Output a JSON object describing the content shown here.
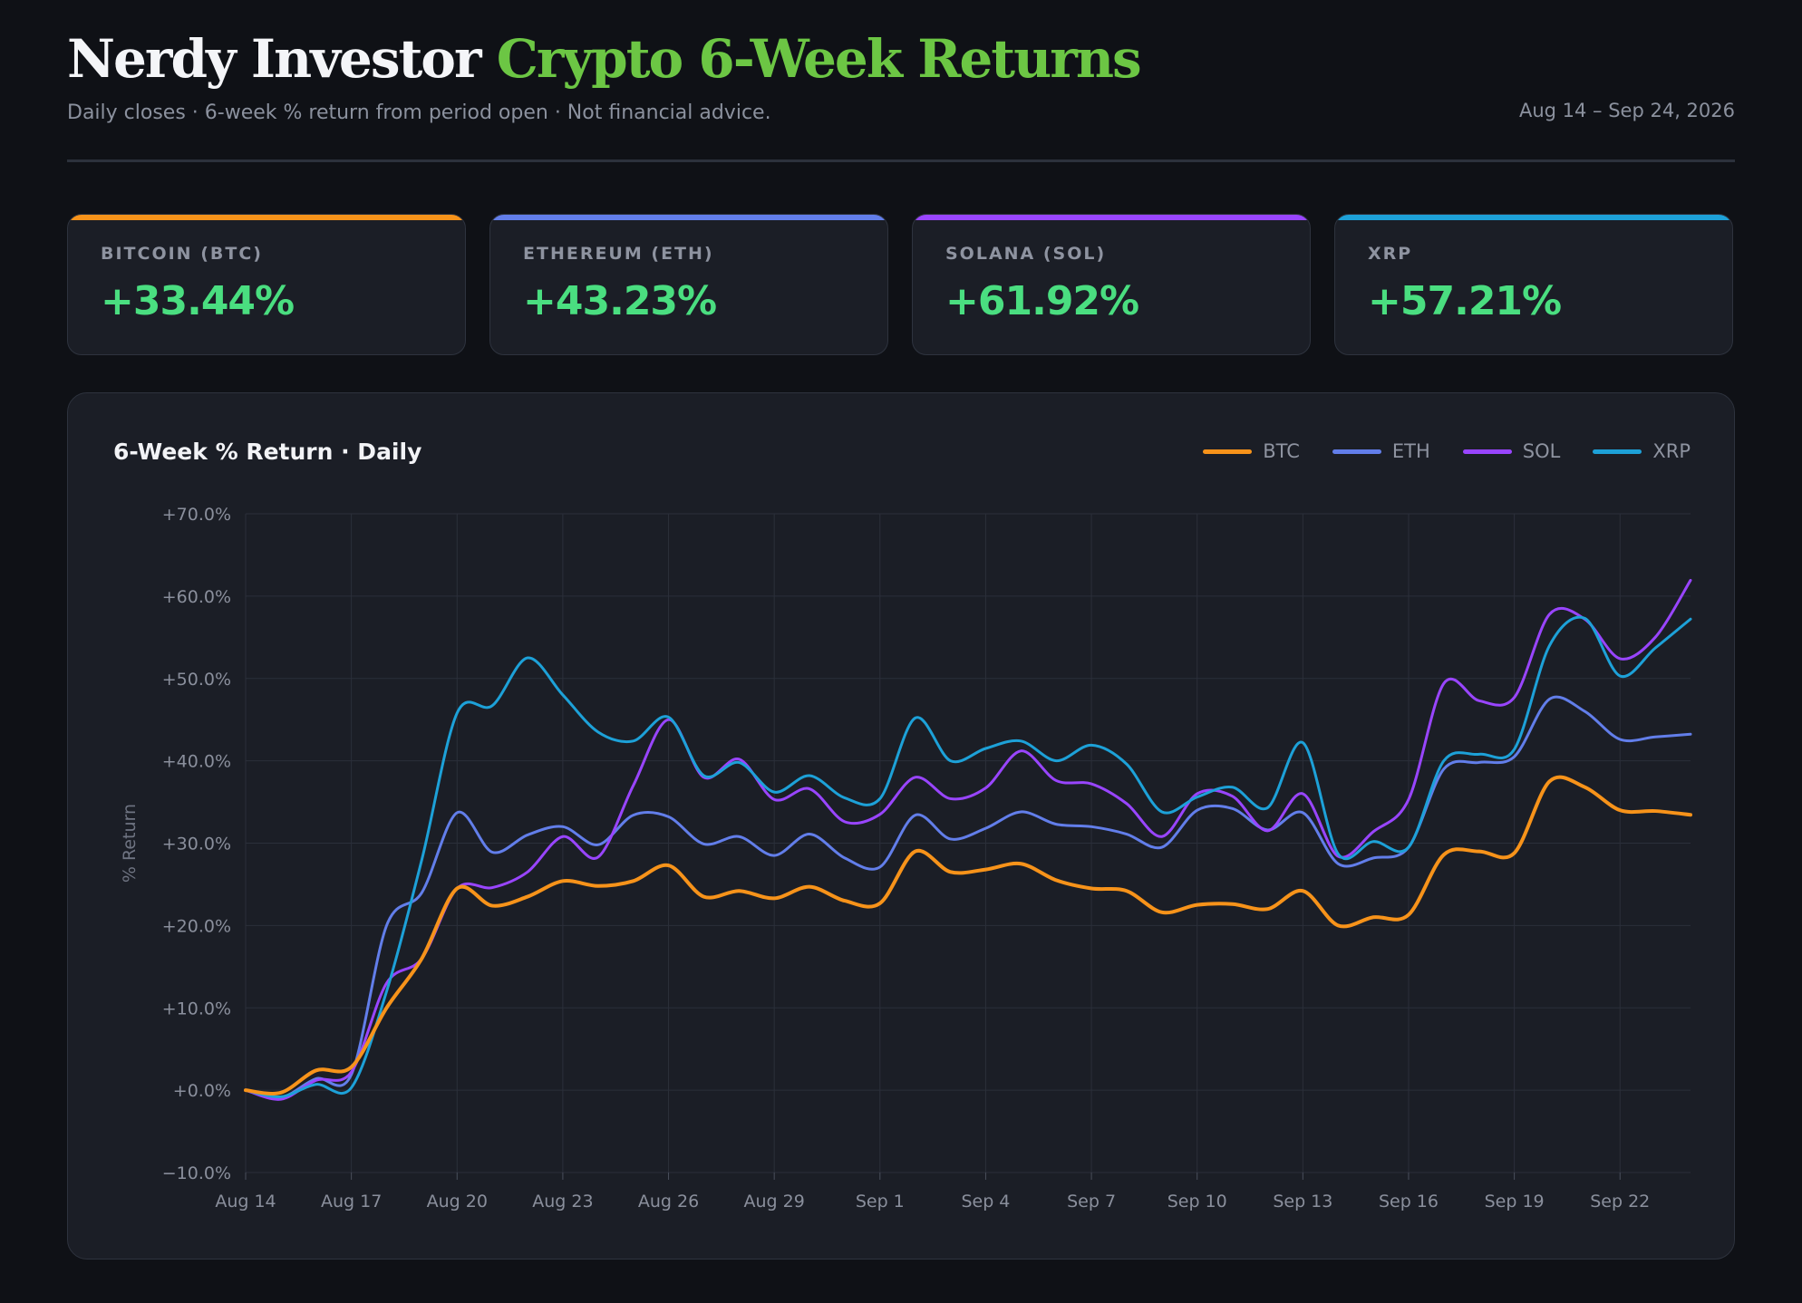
{
  "header": {
    "title_part1": "Nerdy Investor",
    "title_part2": "Crypto 6-Week Returns",
    "subtitle": "Daily closes · 6-week % return from period open · Not financial advice.",
    "date_range": "Aug 14 – Sep 24, 2026"
  },
  "cards": [
    {
      "name": "BITCOIN (BTC)",
      "value": "+33.44%",
      "color": "#f7931a"
    },
    {
      "name": "ETHEREUM (ETH)",
      "value": "+43.23%",
      "color": "#627eea"
    },
    {
      "name": "SOLANA (SOL)",
      "value": "+61.92%",
      "color": "#9945ff"
    },
    {
      "name": "XRP",
      "value": "+57.21%",
      "color": "#1da1d8"
    }
  ],
  "panel": {
    "title": "6-Week % Return · Daily"
  },
  "chart_data": {
    "type": "line",
    "ylabel": "% Return",
    "ylim": [
      -10,
      70
    ],
    "yticks": [
      -10,
      0,
      10,
      20,
      30,
      40,
      50,
      60,
      70
    ],
    "ytick_labels": [
      "−10.0%",
      "+0.0%",
      "+10.0%",
      "+20.0%",
      "+30.0%",
      "+40.0%",
      "+50.0%",
      "+60.0%",
      "+70.0%"
    ],
    "x": [
      "Aug 14",
      "Aug 15",
      "Aug 16",
      "Aug 17",
      "Aug 18",
      "Aug 19",
      "Aug 20",
      "Aug 21",
      "Aug 22",
      "Aug 23",
      "Aug 24",
      "Aug 25",
      "Aug 26",
      "Aug 27",
      "Aug 28",
      "Aug 29",
      "Aug 30",
      "Aug 31",
      "Sep 1",
      "Sep 2",
      "Sep 3",
      "Sep 4",
      "Sep 5",
      "Sep 6",
      "Sep 7",
      "Sep 8",
      "Sep 9",
      "Sep 10",
      "Sep 11",
      "Sep 12",
      "Sep 13",
      "Sep 14",
      "Sep 15",
      "Sep 16",
      "Sep 17",
      "Sep 18",
      "Sep 19",
      "Sep 20",
      "Sep 21",
      "Sep 22",
      "Sep 23",
      "Sep 24"
    ],
    "xtick_labels": [
      "Aug 14",
      "Aug 17",
      "Aug 20",
      "Aug 23",
      "Aug 26",
      "Aug 29",
      "Sep 1",
      "Sep 4",
      "Sep 7",
      "Sep 10",
      "Sep 13",
      "Sep 16",
      "Sep 19",
      "Sep 22"
    ],
    "grid": true,
    "legend_position": "top-right",
    "series": [
      {
        "name": "BTC",
        "color": "#f7931a",
        "width": 4,
        "values": [
          0.0,
          -0.3,
          2.4,
          2.8,
          10.0,
          16.0,
          24.5,
          22.4,
          23.5,
          25.4,
          24.8,
          25.4,
          27.3,
          23.5,
          24.2,
          23.3,
          24.7,
          23.0,
          22.7,
          29.0,
          26.5,
          26.8,
          27.5,
          25.5,
          24.5,
          24.2,
          21.6,
          22.5,
          22.6,
          22.0,
          24.2,
          20.0,
          21.0,
          21.3,
          28.6,
          29.0,
          28.8,
          37.5,
          36.8,
          34.0,
          33.9,
          33.44
        ]
      },
      {
        "name": "ETH",
        "color": "#627eea",
        "width": 3,
        "values": [
          0.0,
          -0.9,
          1.4,
          1.9,
          20.0,
          24.0,
          33.7,
          28.9,
          31.0,
          32.0,
          29.8,
          33.4,
          33.2,
          29.9,
          30.8,
          28.5,
          31.1,
          28.2,
          27.1,
          33.4,
          30.5,
          31.8,
          33.8,
          32.3,
          32.0,
          31.1,
          29.5,
          34.0,
          34.2,
          31.6,
          33.7,
          27.5,
          28.2,
          29.5,
          39.0,
          39.8,
          40.5,
          47.5,
          46.0,
          42.6,
          42.9,
          43.23
        ]
      },
      {
        "name": "SOL",
        "color": "#9945ff",
        "width": 3,
        "values": [
          0.0,
          -1.1,
          1.2,
          2.2,
          13.0,
          16.0,
          24.5,
          24.6,
          26.5,
          30.8,
          28.3,
          37.0,
          45.0,
          38.0,
          40.2,
          35.3,
          36.6,
          32.6,
          33.5,
          38.0,
          35.4,
          36.7,
          41.2,
          37.6,
          37.2,
          34.8,
          30.8,
          36.0,
          35.7,
          31.5,
          36.0,
          28.4,
          31.4,
          35.3,
          49.4,
          47.3,
          47.7,
          57.8,
          57.2,
          52.4,
          55.0,
          61.92
        ]
      },
      {
        "name": "XRP",
        "color": "#1da1d8",
        "width": 3,
        "values": [
          0.0,
          -0.8,
          0.7,
          0.3,
          12.0,
          28.0,
          45.8,
          46.7,
          52.5,
          48.0,
          43.5,
          42.4,
          45.3,
          38.2,
          39.8,
          36.2,
          38.2,
          35.5,
          35.4,
          45.2,
          40.0,
          41.5,
          42.4,
          40.0,
          41.9,
          39.6,
          33.8,
          35.6,
          36.8,
          34.3,
          42.2,
          28.7,
          30.2,
          29.5,
          40.0,
          40.8,
          41.4,
          54.0,
          57.3,
          50.3,
          53.7,
          57.21
        ]
      }
    ]
  }
}
